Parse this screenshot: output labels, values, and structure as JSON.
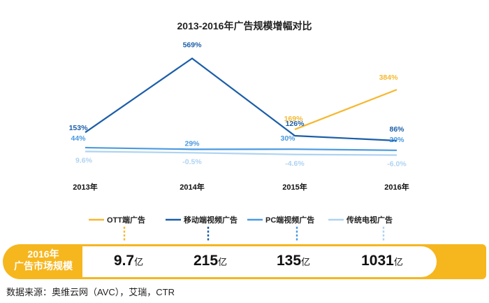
{
  "chart_data": {
    "type": "line",
    "title": "2013-2016年广告规模增幅对比",
    "categories": [
      "2013年",
      "2014年",
      "2015年",
      "2016年"
    ],
    "series": [
      {
        "name": "OTT端广告",
        "color": "#f5b830",
        "values": [
          null,
          null,
          169,
          384
        ],
        "labels": [
          "",
          "",
          "169%",
          "384%"
        ]
      },
      {
        "name": "移动端视频广告",
        "color": "#1b5ea8",
        "values": [
          153,
          569,
          126,
          86
        ],
        "labels": [
          "153%",
          "569%",
          "126%",
          "86%"
        ]
      },
      {
        "name": "PC端视频广告",
        "color": "#4a9ae0",
        "values": [
          44,
          29,
          30,
          20
        ],
        "labels": [
          "44%",
          "29%",
          "30%",
          "20%"
        ]
      },
      {
        "name": "传统电视广告",
        "color": "#aed3f2",
        "values": [
          9.6,
          -0.5,
          -4.6,
          -6.0
        ],
        "labels": [
          "9.6%",
          "-0.5%",
          "-4.6%",
          "-6.0%"
        ]
      }
    ],
    "grid": false,
    "legend": "bottom"
  },
  "market": {
    "label": "2016年广告市场规模",
    "label_line1": "2016年",
    "label_line2": "广告市场规模",
    "unit": "亿",
    "values": [
      "9.7",
      "215",
      "135",
      "1031"
    ]
  },
  "source": "数据来源：奥维云网（AVC），艾瑞，CTR"
}
